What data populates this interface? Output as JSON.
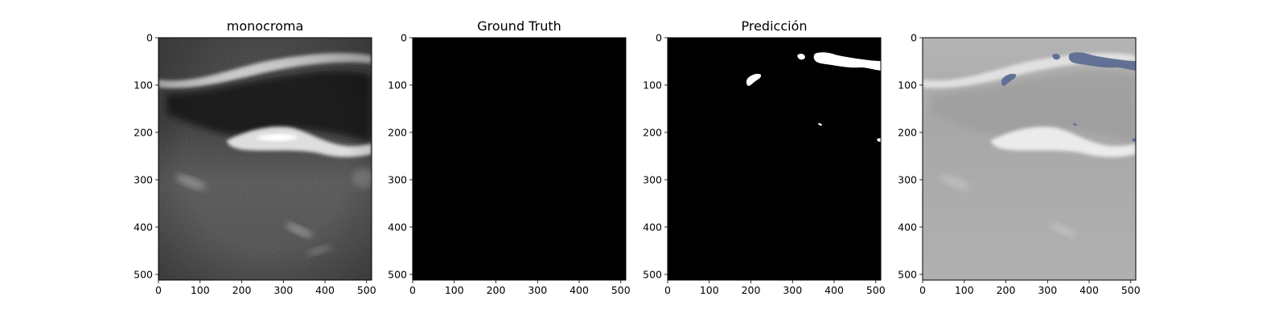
{
  "panels": [
    {
      "title": "monocroma",
      "image": "ultrasound-grayscale",
      "x_ticks": [
        "0",
        "100",
        "200",
        "300",
        "400",
        "500"
      ],
      "y_ticks": [
        "0",
        "100",
        "200",
        "300",
        "400",
        "500"
      ]
    },
    {
      "title": "Ground Truth",
      "image": "black-mask",
      "x_ticks": [
        "0",
        "100",
        "200",
        "300",
        "400",
        "500"
      ],
      "y_ticks": [
        "0",
        "100",
        "200",
        "300",
        "400",
        "500"
      ]
    },
    {
      "title": "Predicción",
      "image": "binary-prediction-mask",
      "x_ticks": [
        "0",
        "100",
        "200",
        "300",
        "400",
        "500"
      ],
      "y_ticks": [
        "0",
        "100",
        "200",
        "300",
        "400",
        "500"
      ]
    },
    {
      "title": "",
      "image": "ultrasound-with-prediction-overlay",
      "x_ticks": [
        "0",
        "100",
        "200",
        "300",
        "400",
        "500"
      ],
      "y_ticks": [
        "0",
        "100",
        "200",
        "300",
        "400",
        "500"
      ]
    }
  ],
  "colors": {
    "mask_background": "#000000",
    "mask_foreground": "#ffffff",
    "overlay": "#5b6d92"
  }
}
